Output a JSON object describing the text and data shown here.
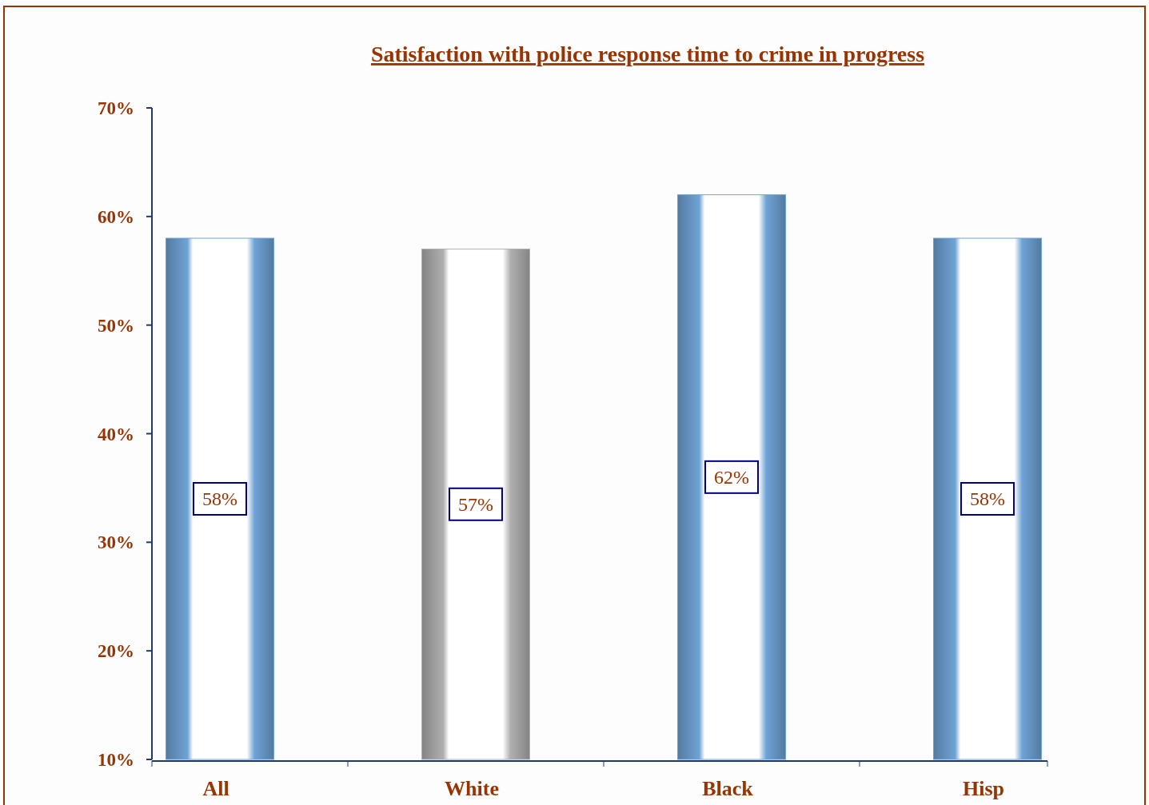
{
  "chart_data": {
    "type": "bar",
    "title": "Satisfaction with police response time to crime in progress",
    "categories": [
      "All",
      "White",
      "Black",
      "Hisp"
    ],
    "values": [
      58,
      57,
      62,
      58
    ],
    "colors": [
      "#6fa3d6",
      "#b0b0b0",
      "#6fa3d6",
      "#6fa3d6"
    ],
    "value_labels": [
      "58%",
      "57%",
      "62%",
      "58%"
    ],
    "ylim": [
      10,
      70
    ],
    "yticks": [
      {
        "value": 10,
        "label": "10%"
      },
      {
        "value": 20,
        "label": "20%"
      },
      {
        "value": 30,
        "label": "30%"
      },
      {
        "value": 40,
        "label": "40%"
      },
      {
        "value": 50,
        "label": "50%"
      },
      {
        "value": 60,
        "label": "60%"
      },
      {
        "value": 70,
        "label": "70%"
      }
    ],
    "grid": false
  }
}
